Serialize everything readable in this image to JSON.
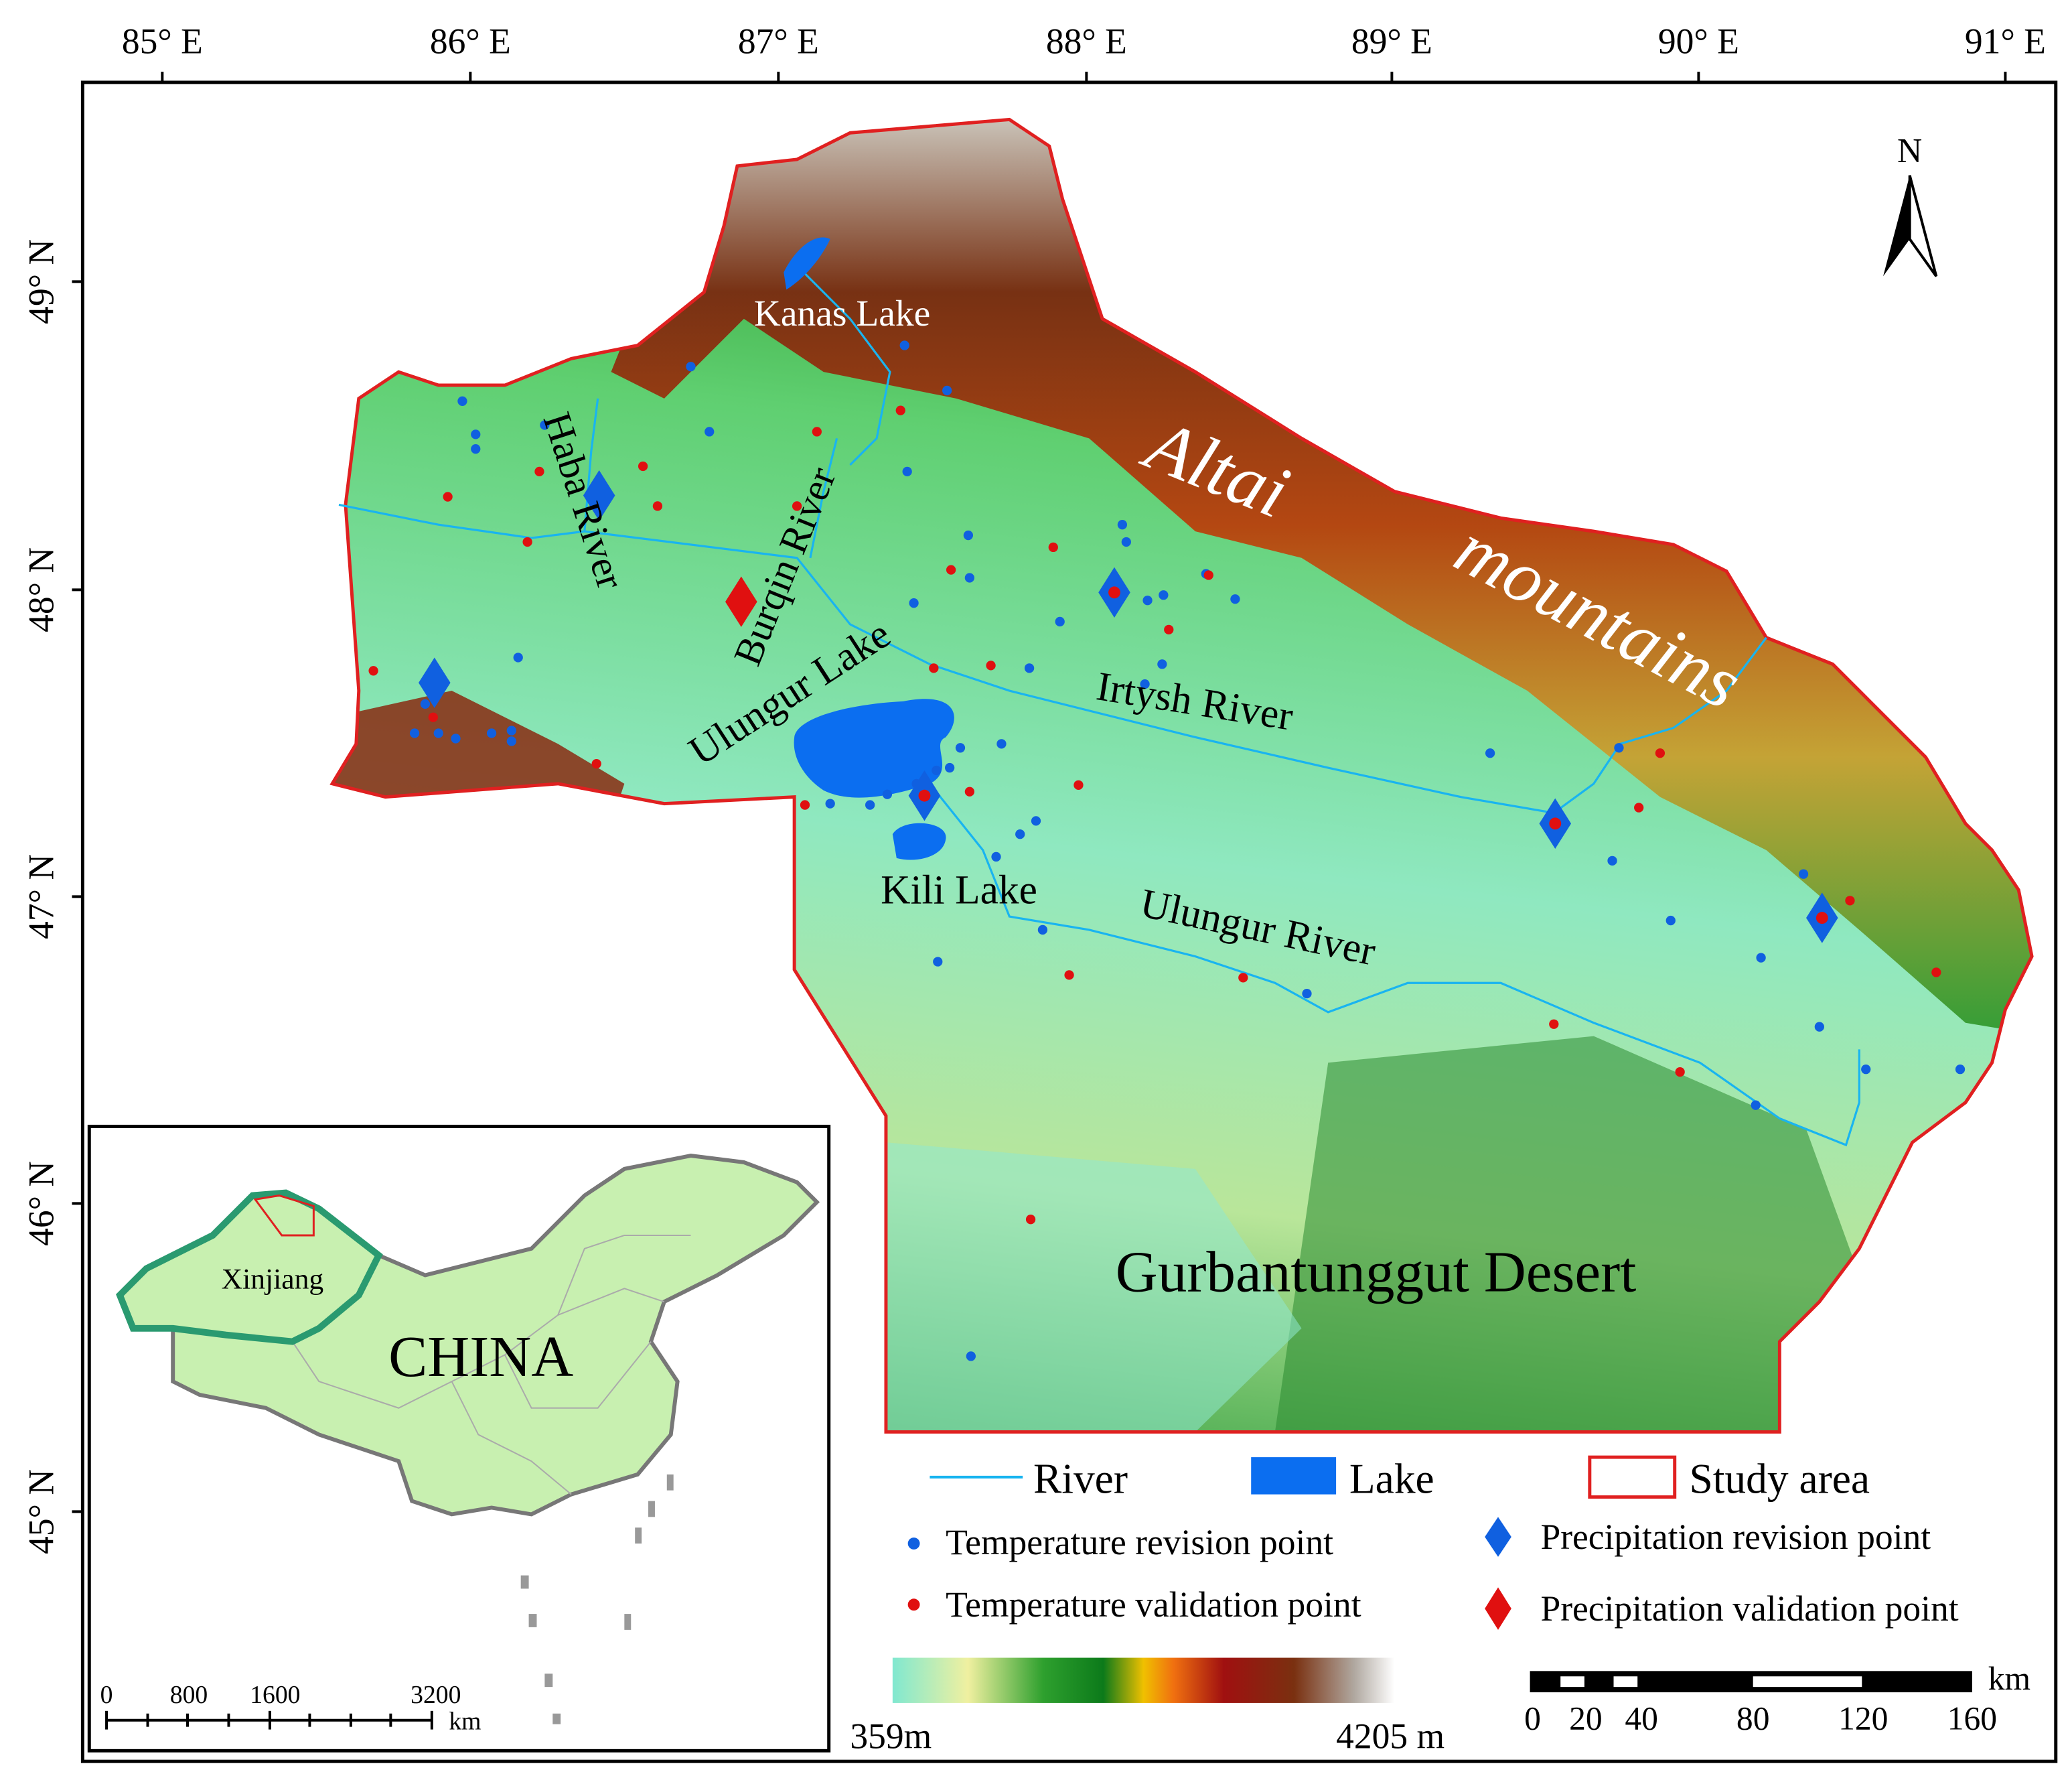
{
  "map": {
    "longitude_labels": [
      "85° E",
      "86° E",
      "87° E",
      "88° E",
      "89° E",
      "90° E",
      "91° E"
    ],
    "latitude_labels": [
      "49° N",
      "48° N",
      "47° N",
      "46° N",
      "45° N"
    ],
    "north_arrow": "N",
    "places": {
      "kanas_lake": "Kanas Lake",
      "haba_river": "Haba River",
      "burqin_river": "Burqin River",
      "altai_1": "Altai",
      "altai_2": "mountains",
      "ulungur_lake": "Ulungur Lake",
      "irtysh_river": "Irtysh River",
      "kili_lake": "Kili Lake",
      "ulungur_river": "Ulungur River",
      "desert": "Gurbantunggut  Desert"
    },
    "legend": {
      "river": "River",
      "lake": "Lake",
      "study_area": "Study area",
      "temperature_revision": "Temperature revision point",
      "temperature_validation": "Temperature validation point",
      "precipitation_revision": "Precipitation revision point",
      "precipitation_validation": "Precipitation validation point"
    },
    "colorbar": {
      "min_label": "359m",
      "max_label": "4205 m"
    },
    "scale_bar": {
      "labels": [
        "0",
        "20",
        "40",
        "80",
        "120",
        "160"
      ],
      "unit": "km"
    },
    "inset": {
      "region": "Xinjiang",
      "country": "CHINA",
      "scale_labels": [
        "0",
        "800",
        "1600",
        "3200"
      ],
      "scale_unit": "km"
    }
  }
}
